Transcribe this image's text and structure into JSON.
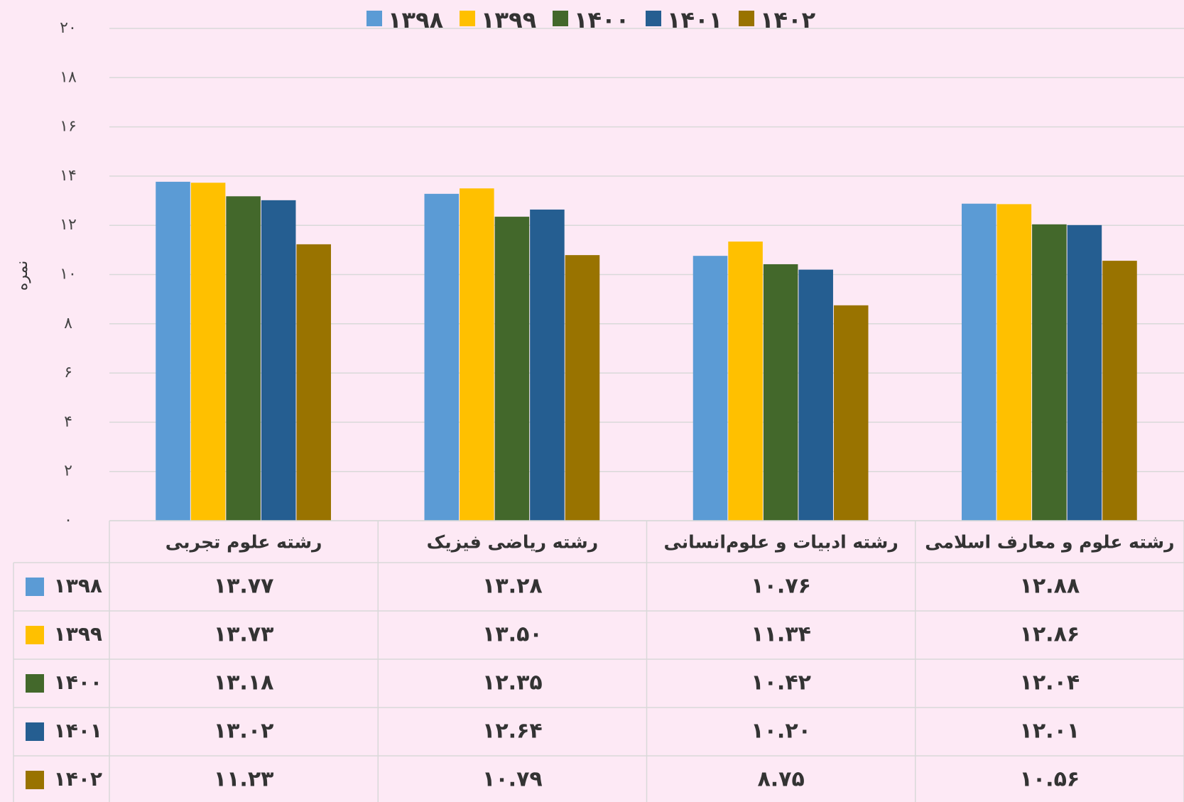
{
  "chart_data": {
    "type": "bar",
    "y_label": "نمره",
    "categories": [
      "رشته علوم تجربی",
      "رشته ریاضی فیزیک",
      "رشته ادبیات و علوم‌انسانی",
      "رشته علوم و معارف اسلامی"
    ],
    "series": [
      {
        "name": "۱۳۹۸",
        "color": "#5b9bd5",
        "values": [
          13.77,
          13.28,
          10.76,
          12.88
        ],
        "value_labels": [
          "۱۳.۷۷",
          "۱۳.۲۸",
          "۱۰.۷۶",
          "۱۲.۸۸"
        ]
      },
      {
        "name": "۱۳۹۹",
        "color": "#ffc000",
        "values": [
          13.73,
          13.5,
          11.34,
          12.86
        ],
        "value_labels": [
          "۱۳.۷۳",
          "۱۳.۵۰",
          "۱۱.۳۴",
          "۱۲.۸۶"
        ]
      },
      {
        "name": "۱۴۰۰",
        "color": "#43682b",
        "values": [
          13.18,
          12.35,
          10.42,
          12.04
        ],
        "value_labels": [
          "۱۳.۱۸",
          "۱۲.۳۵",
          "۱۰.۴۲",
          "۱۲.۰۴"
        ]
      },
      {
        "name": "۱۴۰۱",
        "color": "#255e91",
        "values": [
          13.02,
          12.64,
          10.2,
          12.01
        ],
        "value_labels": [
          "۱۳.۰۲",
          "۱۲.۶۴",
          "۱۰.۲۰",
          "۱۲.۰۱"
        ]
      },
      {
        "name": "۱۴۰۲",
        "color": "#997300",
        "values": [
          11.23,
          10.79,
          8.75,
          10.56
        ],
        "value_labels": [
          "۱۱.۲۳",
          "۱۰.۷۹",
          "۸.۷۵",
          "۱۰.۵۶"
        ]
      }
    ],
    "ylim": [
      0,
      20
    ],
    "yticks": [
      {
        "value": 0,
        "label": "۰"
      },
      {
        "value": 2,
        "label": "۲"
      },
      {
        "value": 4,
        "label": "۴"
      },
      {
        "value": 6,
        "label": "۶"
      },
      {
        "value": 8,
        "label": "۸"
      },
      {
        "value": 10,
        "label": "۱۰"
      },
      {
        "value": 12,
        "label": "۱۲"
      },
      {
        "value": 14,
        "label": "۱۴"
      },
      {
        "value": 16,
        "label": "۱۶"
      },
      {
        "value": 18,
        "label": "۱۸"
      },
      {
        "value": 20,
        "label": "۲۰"
      }
    ],
    "grid": true,
    "legend": "top",
    "data_table": true
  }
}
